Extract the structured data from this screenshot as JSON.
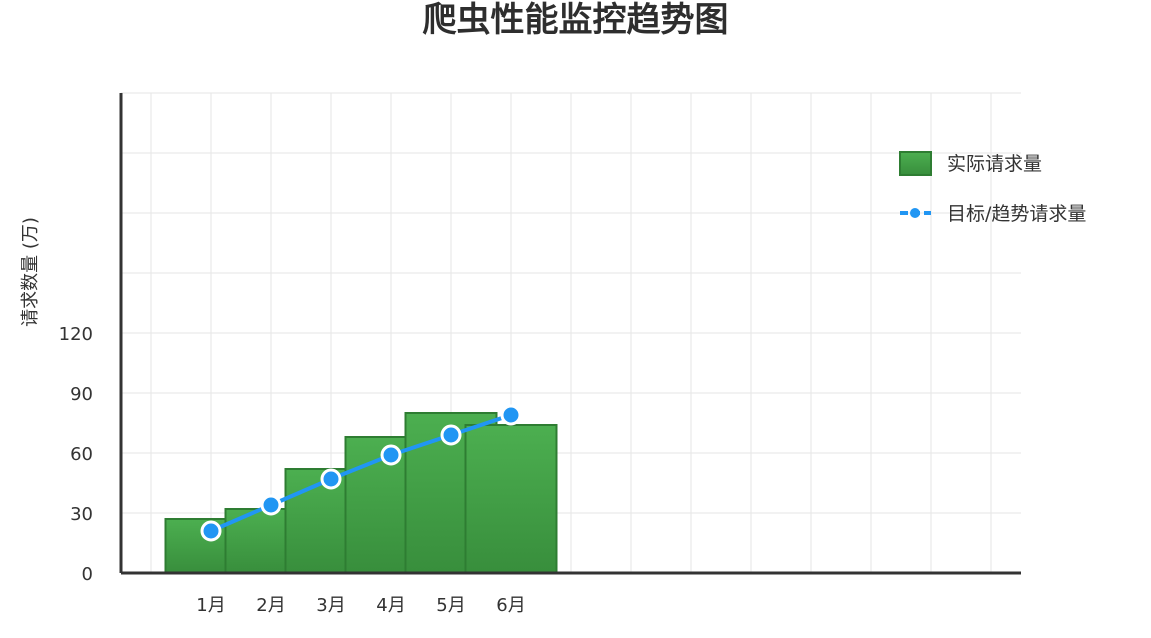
{
  "chart_data": {
    "type": "bar",
    "title": "爬虫性能监控趋势图",
    "xlabel": "",
    "ylabel": "请求数量 (万)",
    "categories": [
      "1月",
      "2月",
      "3月",
      "4月",
      "5月",
      "6月"
    ],
    "x_slots": 15,
    "ylim": [
      0,
      240
    ],
    "y_ticks": [
      0,
      30,
      60,
      90,
      120
    ],
    "grid": true,
    "legend_position": "top-right",
    "series": [
      {
        "name": "实际请求量",
        "type": "bar",
        "color": "#43a047",
        "values": [
          27,
          32,
          52,
          68,
          80,
          74
        ]
      },
      {
        "name": "目标/趋势请求量",
        "type": "line",
        "color": "#2196f3",
        "values": [
          21,
          34,
          47,
          59,
          69,
          79
        ]
      }
    ]
  }
}
